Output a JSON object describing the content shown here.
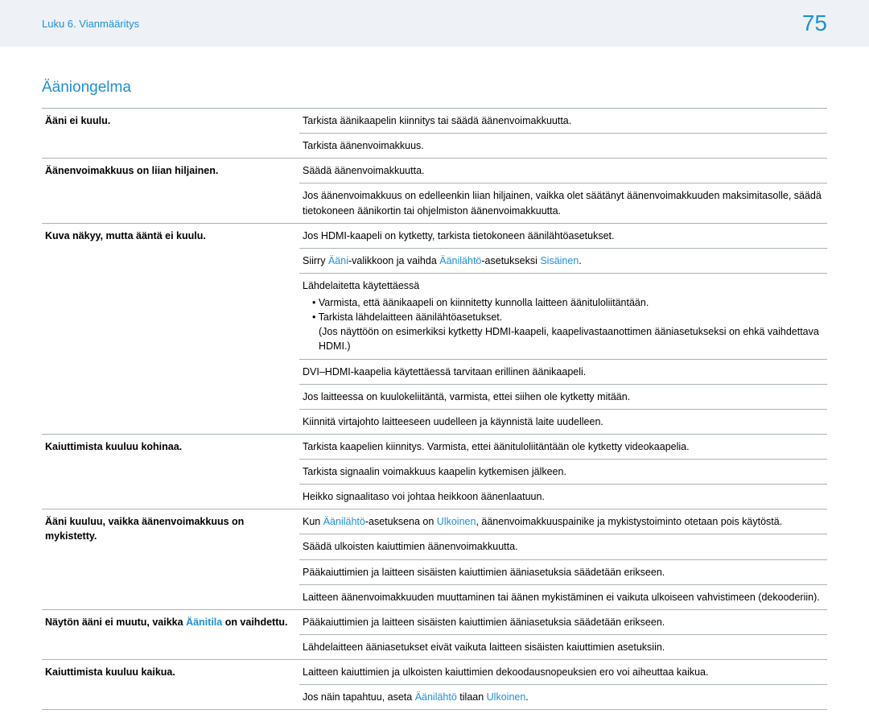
{
  "header": {
    "breadcrumb": "Luku 6. Vianmääritys",
    "page_number": "75"
  },
  "section_title": "Ääniongelma",
  "colors": {
    "accent": "#1e8fd6",
    "header_bg": "#eef2f6",
    "border": "#aab5b0"
  },
  "rows": {
    "r1": {
      "label": "Ääni ei kuulu.",
      "v1": "Tarkista äänikaapelin kiinnitys tai säädä äänenvoimakkuutta.",
      "v2": "Tarkista äänenvoimakkuus."
    },
    "r2": {
      "label": "Äänenvoimakkuus on liian hiljainen.",
      "v1": "Säädä äänenvoimakkuutta.",
      "v2": "Jos äänenvoimakkuus on edelleenkin liian hiljainen, vaikka olet säätänyt äänenvoimakkuuden maksimitasolle, säädä tietokoneen äänikortin tai ohjelmiston äänenvoimakkuutta."
    },
    "r3": {
      "label": "Kuva näkyy, mutta ääntä ei kuulu.",
      "v1": "Jos HDMI-kaapeli on kytketty, tarkista tietokoneen äänilähtöasetukset.",
      "v2_pre": "Siirry ",
      "v2_l1": "Ääni",
      "v2_mid1": "-valikkoon ja vaihda ",
      "v2_l2": "Äänilähtö",
      "v2_mid2": "-asetukseksi ",
      "v2_l3": "Sisäinen",
      "v2_end": ".",
      "v3_head": "Lähdelaitetta käytettäessä",
      "v3_b1": "Varmista, että äänikaapeli on kiinnitetty kunnolla laitteen äänituloliitäntään.",
      "v3_b2": "Tarkista lähdelaitteen äänilähtöasetukset.",
      "v3_note": "(Jos näyttöön on esimerkiksi kytketty HDMI-kaapeli, kaapelivastaanottimen ääniasetukseksi on ehkä vaihdettava HDMI.)",
      "v4": "DVI–HDMI-kaapelia käytettäessä tarvitaan erillinen äänikaapeli.",
      "v5": "Jos laitteessa on kuulokeliitäntä, varmista, ettei siihen ole kytketty mitään.",
      "v6": "Kiinnitä virtajohto laitteeseen uudelleen ja käynnistä laite uudelleen."
    },
    "r4": {
      "label": "Kaiuttimista kuuluu kohinaa.",
      "v1": "Tarkista kaapelien kiinnitys. Varmista, ettei äänituloliitäntään ole kytketty videokaapelia.",
      "v2": "Tarkista signaalin voimakkuus kaapelin kytkemisen jälkeen.",
      "v3": "Heikko signaalitaso voi johtaa heikkoon äänenlaatuun."
    },
    "r5": {
      "label": "Ääni kuuluu, vaikka äänenvoimakkuus on mykistetty.",
      "v1_pre": "Kun ",
      "v1_l1": "Äänilähtö",
      "v1_mid1": "-asetuksena on ",
      "v1_l2": "Ulkoinen",
      "v1_end": ", äänenvoimakkuuspainike ja mykistystoiminto otetaan pois käytöstä.",
      "v2": "Säädä ulkoisten kaiuttimien äänenvoimakkuutta.",
      "v3": "Pääkaiuttimien ja laitteen sisäisten kaiuttimien ääniasetuksia säädetään erikseen.",
      "v4": "Laitteen äänenvoimakkuuden muuttaminen tai äänen mykistäminen ei vaikuta ulkoiseen vahvistimeen (dekooderiin)."
    },
    "r6": {
      "label_pre": "Näytön ääni ei muutu, vaikka ",
      "label_l": "Äänitila",
      "label_post": " on vaihdettu.",
      "v1": "Pääkaiuttimien ja laitteen sisäisten kaiuttimien ääniasetuksia säädetään erikseen.",
      "v2": "Lähdelaitteen ääniasetukset eivät vaikuta laitteen sisäisten kaiuttimien asetuksiin."
    },
    "r7": {
      "label": "Kaiuttimista kuuluu kaikua.",
      "v1": "Laitteen kaiuttimien ja ulkoisten kaiuttimien dekoodausnopeuksien ero voi aiheuttaa kaikua.",
      "v2_pre": "Jos näin tapahtuu, aseta ",
      "v2_l1": "Äänilähtö",
      "v2_mid": " tilaan ",
      "v2_l2": "Ulkoinen",
      "v2_end": "."
    }
  }
}
